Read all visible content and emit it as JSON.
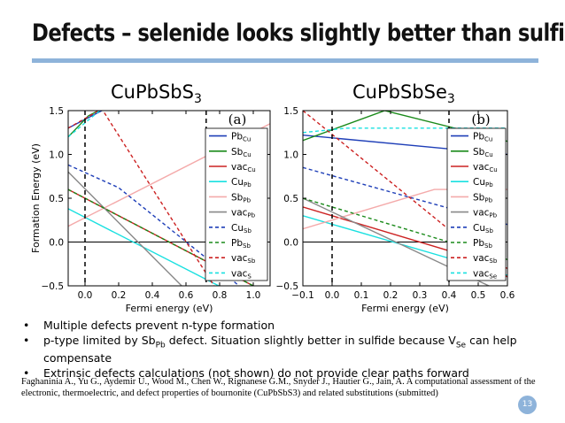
{
  "slide": {
    "title": "Defects – selenide looks slightly better than sulfide",
    "page_number": "13",
    "accent_color": "#8eb3da"
  },
  "bullets": [
    {
      "parts": [
        {
          "t": "Multiple defects prevent n-type formation"
        }
      ]
    },
    {
      "parts": [
        {
          "t": "p-type limited by Sb"
        },
        {
          "sub": "Pb"
        },
        {
          "t": " defect. Situation slightly better in sulfide because V"
        },
        {
          "sub": "Se"
        },
        {
          "t": " can help compensate"
        }
      ]
    },
    {
      "parts": [
        {
          "t": "Extrinsic defects calculations (not shown) do not provide clear paths forward"
        }
      ]
    }
  ],
  "citation": "Faghaninia A., Yu G., Aydemir U., Wood M., Chen W., Rignanese G.M., Snyder J., Hautier G., Jain, A. A computational assessment of the electronic, thermoelectric, and defect properties of bournonite (CuPbSbS3) and related substitutions (submitted)",
  "chart_data": [
    {
      "type": "line",
      "title_main": "CuPbSbS",
      "title_sub": "3",
      "panel_label": "(a)",
      "xlabel": "Fermi energy (eV)",
      "ylabel": "Formation Energy (eV)",
      "xlim": [
        -0.1,
        1.1
      ],
      "ylim": [
        -0.5,
        1.5
      ],
      "xticks": [
        "0.0",
        "0.2",
        "0.4",
        "0.6",
        "0.8",
        "1.0"
      ],
      "xtick_values": [
        0,
        0.2,
        0.4,
        0.6,
        0.8,
        1.0
      ],
      "yticks": [
        "−0.5",
        "0.0",
        "0.5",
        "1.0",
        "1.5"
      ],
      "ytick_values": [
        -0.5,
        0,
        0.5,
        1.0,
        1.5
      ],
      "vlines": [
        0,
        0.72
      ],
      "series": [
        {
          "name": "Pb",
          "sub": "Cu",
          "color": "#1f3fb8",
          "dash": "solid",
          "x": [
            -0.1,
            0.15
          ],
          "y": [
            1.3,
            1.55
          ]
        },
        {
          "name": "Sb",
          "sub": "Cu",
          "color": "#1a8a1a",
          "dash": "solid",
          "x": [
            -0.1,
            0.02,
            0.1
          ],
          "y": [
            1.2,
            1.44,
            1.52
          ]
        },
        {
          "name": "vac",
          "sub": "Cu",
          "color": "#cc2222",
          "dash": "solid",
          "x": [
            -0.1,
            1.1
          ],
          "y": [
            0.6,
            -0.6
          ]
        },
        {
          "name": "Cu",
          "sub": "Pb",
          "color": "#19e0e0",
          "dash": "solid",
          "x": [
            -0.1,
            1.1
          ],
          "y": [
            0.38,
            -0.8
          ]
        },
        {
          "name": "Sb",
          "sub": "Pb",
          "color": "#f4aaaa",
          "dash": "solid",
          "x": [
            -0.1,
            1.1
          ],
          "y": [
            0.18,
            1.35
          ]
        },
        {
          "name": "vac",
          "sub": "Pb",
          "color": "#888888",
          "dash": "solid",
          "x": [
            -0.1,
            0.6,
            1.1
          ],
          "y": [
            0.8,
            -0.55,
            -0.95
          ]
        },
        {
          "name": "Cu",
          "sub": "Sb",
          "color": "#1f3fb8",
          "dash": "dashed",
          "x": [
            -0.1,
            0.2,
            0.7,
            1.1
          ],
          "y": [
            0.88,
            0.62,
            -0.15,
            -0.8
          ]
        },
        {
          "name": "Pb",
          "sub": "Sb",
          "color": "#1a8a1a",
          "dash": "dashed",
          "x": [
            -0.1,
            1.1
          ],
          "y": [
            0.6,
            -0.6
          ]
        },
        {
          "name": "vac",
          "sub": "Sb",
          "color": "#cc2222",
          "dash": "dashed",
          "x": [
            -0.1,
            0.1,
            0.8,
            1.1
          ],
          "y": [
            1.3,
            1.52,
            -0.6,
            -0.9
          ]
        },
        {
          "name": "vac",
          "sub": "S",
          "color": "#19e0e0",
          "dash": "dashed",
          "x": [
            -0.1,
            0.1,
            1.1
          ],
          "y": [
            1.2,
            1.52,
            1.52
          ]
        }
      ]
    },
    {
      "type": "line",
      "title_main": "CuPbSbSe",
      "title_sub": "3",
      "panel_label": "(b)",
      "xlabel": "Fermi energy (eV)",
      "ylabel": "",
      "xlim": [
        -0.1,
        0.6
      ],
      "ylim": [
        -0.5,
        1.5
      ],
      "xticks": [
        "−0.1",
        "0.0",
        "0.1",
        "0.2",
        "0.3",
        "0.4",
        "0.5",
        "0.6"
      ],
      "xtick_values": [
        -0.1,
        0,
        0.1,
        0.2,
        0.3,
        0.4,
        0.5,
        0.6
      ],
      "yticks": [
        "−0.5",
        "0.0",
        "0.5",
        "1.0",
        "1.5"
      ],
      "ytick_values": [
        -0.5,
        0,
        0.5,
        1.0,
        1.5
      ],
      "vlines": [
        0,
        0.4
      ],
      "series": [
        {
          "name": "Pb",
          "sub": "Cu",
          "color": "#1f3fb8",
          "dash": "solid",
          "x": [
            -0.1,
            0.6
          ],
          "y": [
            1.22,
            1.0
          ]
        },
        {
          "name": "Sb",
          "sub": "Cu",
          "color": "#1a8a1a",
          "dash": "solid",
          "x": [
            -0.1,
            0.18,
            0.6
          ],
          "y": [
            1.16,
            1.5,
            1.15
          ]
        },
        {
          "name": "vac",
          "sub": "Cu",
          "color": "#cc2222",
          "dash": "solid",
          "x": [
            -0.1,
            0.6
          ],
          "y": [
            0.4,
            -0.3
          ]
        },
        {
          "name": "Cu",
          "sub": "Pb",
          "color": "#19e0e0",
          "dash": "solid",
          "x": [
            -0.1,
            0.6
          ],
          "y": [
            0.3,
            -0.38
          ]
        },
        {
          "name": "Sb",
          "sub": "Pb",
          "color": "#f4aaaa",
          "dash": "solid",
          "x": [
            -0.1,
            0.35,
            0.6
          ],
          "y": [
            0.15,
            0.6,
            0.6
          ]
        },
        {
          "name": "vac",
          "sub": "Pb",
          "color": "#888888",
          "dash": "solid",
          "x": [
            -0.1,
            0.6
          ],
          "y": [
            0.5,
            -0.6
          ]
        },
        {
          "name": "Cu",
          "sub": "Sb",
          "color": "#1f3fb8",
          "dash": "dashed",
          "x": [
            -0.1,
            0.6
          ],
          "y": [
            0.85,
            0.2
          ]
        },
        {
          "name": "Pb",
          "sub": "Sb",
          "color": "#1a8a1a",
          "dash": "dashed",
          "x": [
            -0.1,
            0.4,
            0.6
          ],
          "y": [
            0.5,
            0.0,
            -0.2
          ]
        },
        {
          "name": "vac",
          "sub": "Sb",
          "color": "#cc2222",
          "dash": "dashed",
          "x": [
            -0.1,
            0.6
          ],
          "y": [
            1.5,
            -0.4
          ]
        },
        {
          "name": "vac",
          "sub": "Se",
          "color": "#19e0e0",
          "dash": "dashed",
          "x": [
            -0.1,
            0.05,
            0.6
          ],
          "y": [
            1.25,
            1.3,
            1.3
          ]
        }
      ]
    }
  ]
}
